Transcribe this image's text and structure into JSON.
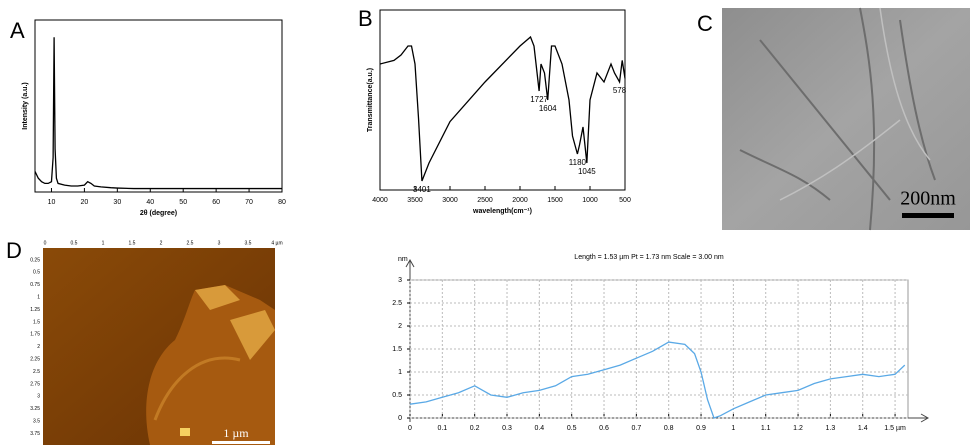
{
  "panel_labels": [
    "A",
    "B",
    "C",
    "D"
  ],
  "chart_data": [
    {
      "type": "line",
      "xlabel": "2θ (degree)",
      "ylabel": "Intensity (a.u.)",
      "x": [
        5,
        6,
        7,
        8,
        9,
        10,
        10.5,
        10.8,
        11.1,
        11.5,
        12,
        14,
        16,
        18,
        20,
        21,
        22,
        23,
        25,
        28,
        30,
        35,
        40,
        50,
        60,
        70,
        80
      ],
      "series": [
        {
          "color": "#000000",
          "values": [
            12,
            8,
            6,
            5,
            5,
            6,
            20,
            90,
            25,
            8,
            5,
            4,
            3.5,
            3.5,
            4,
            6,
            5,
            3.5,
            3,
            2.5,
            2.3,
            2,
            2,
            2,
            2,
            2,
            2
          ]
        }
      ],
      "xlim": [
        5,
        80
      ],
      "xticks": [
        10,
        20,
        30,
        40,
        50,
        60,
        70,
        80
      ],
      "ylim": [
        0,
        100
      ]
    },
    {
      "type": "line",
      "xlabel": "wavelength(cm⁻¹)",
      "ylabel": "Transmittance(a.u.)",
      "x": [
        4000,
        3800,
        3700,
        3600,
        3550,
        3500,
        3450,
        3401,
        3300,
        3000,
        2500,
        2000,
        1850,
        1800,
        1727,
        1700,
        1650,
        1604,
        1550,
        1500,
        1400,
        1300,
        1250,
        1180,
        1150,
        1100,
        1045,
        1000,
        900,
        800,
        700,
        650,
        578,
        540,
        500
      ],
      "series": [
        {
          "color": "#000000",
          "values": [
            70,
            72,
            75,
            80,
            80,
            70,
            40,
            5,
            15,
            38,
            60,
            80,
            85,
            80,
            55,
            70,
            65,
            50,
            80,
            80,
            70,
            50,
            30,
            20,
            25,
            35,
            15,
            50,
            65,
            60,
            70,
            65,
            60,
            72,
            62
          ]
        }
      ],
      "peak_labels": [
        3401,
        1727,
        1604,
        1180,
        1045,
        578
      ],
      "xlim": [
        4000,
        500
      ],
      "xticks": [
        4000,
        3500,
        3000,
        2500,
        2000,
        1500,
        1000,
        500
      ],
      "ylim": [
        0,
        100
      ]
    },
    {
      "type": "line",
      "title": "Length = 1.53 µm  Pt = 1.73 nm  Scale = 3.00 nm",
      "ylabel": "nm",
      "x": [
        0,
        0.05,
        0.1,
        0.15,
        0.2,
        0.25,
        0.3,
        0.35,
        0.4,
        0.45,
        0.5,
        0.55,
        0.6,
        0.65,
        0.7,
        0.75,
        0.8,
        0.85,
        0.88,
        0.9,
        0.92,
        0.94,
        0.96,
        1.0,
        1.05,
        1.1,
        1.15,
        1.2,
        1.25,
        1.3,
        1.35,
        1.4,
        1.45,
        1.5,
        1.53
      ],
      "series": [
        {
          "color": "#5aa9e6",
          "values": [
            0.3,
            0.35,
            0.45,
            0.55,
            0.7,
            0.5,
            0.45,
            0.55,
            0.6,
            0.7,
            0.9,
            0.95,
            1.05,
            1.15,
            1.3,
            1.45,
            1.65,
            1.6,
            1.4,
            1.0,
            0.4,
            0.0,
            0.05,
            0.2,
            0.35,
            0.5,
            0.55,
            0.6,
            0.75,
            0.85,
            0.9,
            0.95,
            0.9,
            0.95,
            1.15
          ]
        }
      ],
      "xlim": [
        0,
        1.54
      ],
      "xticks": [
        0,
        0.1,
        0.2,
        0.3,
        0.4,
        0.5,
        0.6,
        0.7,
        0.8,
        0.9,
        1,
        1.1,
        1.2,
        1.3,
        1.4,
        {
          "value": 1.5,
          "label": "1.5 µm"
        }
      ],
      "ylim": [
        0,
        3
      ],
      "yticks": [
        0,
        0.5,
        1,
        1.5,
        2,
        2.5,
        3
      ],
      "grid": true
    }
  ],
  "tem": {
    "scale_bar": "200nm"
  },
  "afm": {
    "top_ticks": [
      "0",
      "0.5",
      "1",
      "1.5",
      "2",
      "2.5",
      "3",
      "3.5",
      "4 µm"
    ],
    "left_ticks": [
      "0.25",
      "0.5",
      "0.75",
      "1",
      "1.25",
      "1.5",
      "1.75",
      "2",
      "2.25",
      "2.5",
      "2.75",
      "3",
      "3.25",
      "3.5",
      "3.75"
    ],
    "scale_bar": "1 µm"
  }
}
